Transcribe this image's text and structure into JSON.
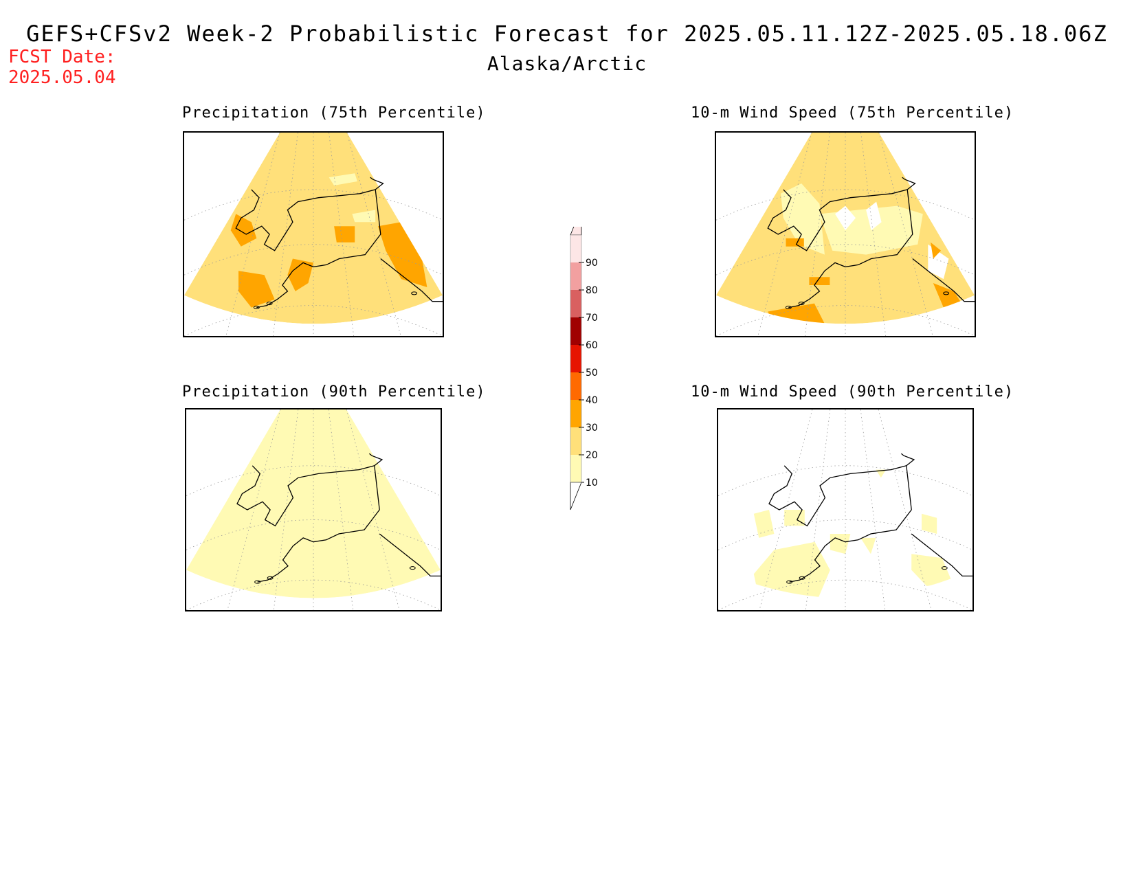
{
  "header": {
    "title": "GEFS+CFSv2 Week-2 Probabilistic Forecast for 2025.05.11.12Z-2025.05.18.06Z",
    "region": "Alaska/Arctic",
    "fcst_label": "FCST Date:",
    "fcst_date": "2025.05.04"
  },
  "panels": [
    {
      "title": "Precipitation (75th Percentile)",
      "dominant_level": 20
    },
    {
      "title": "10-m Wind Speed (75th Percentile)",
      "dominant_level": 20
    },
    {
      "title": "Precipitation (90th Percentile)",
      "dominant_level": 10
    },
    {
      "title": "10-m Wind Speed (90th Percentile)",
      "dominant_level": 0
    }
  ],
  "colorbar": {
    "levels": [
      "10",
      "20",
      "30",
      "40",
      "50",
      "60",
      "70",
      "80",
      "90"
    ],
    "colors": {
      "10": "#fffab4",
      "20": "#ffe07a",
      "30": "#ffa500",
      "40": "#ff6a00",
      "50": "#e61400",
      "60": "#a00000",
      "70": "#d96060",
      "80": "#f2a0a0",
      "90": "#fde6e6"
    }
  }
}
